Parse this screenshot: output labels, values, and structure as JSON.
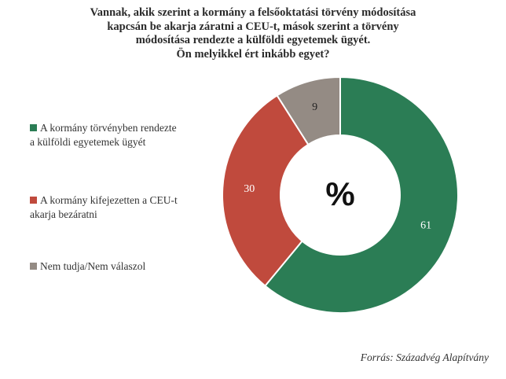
{
  "title_lines": [
    "Vannak, akik szerint a kormány a felsőoktatási törvény módosítása",
    "kapcsán be akarja záratni a CEU-t, mások szerint a törvény",
    "módosítása rendezte a külföldi egyetemek ügyét.",
    "Ön melyikkel ért inkább egyet?"
  ],
  "center_label": "%",
  "source": "Forrás: Századvég Alapítvány",
  "chart_data": {
    "type": "pie",
    "title": "Vannak, akik szerint a kormány a felsőoktatási törvény módosítása kapcsán be akarja záratni a CEU-t, mások szerint a törvény módosítása rendezte a külföldi egyetemek ügyét. Ön melyikkel ért inkább egyet?",
    "unit": "%",
    "donut": true,
    "legend_position": "left",
    "slices": [
      {
        "label_lines": [
          "A kormány törvényben rendezte",
          "a külföldi egyetemek ügyét"
        ],
        "value": 61,
        "color": "#2b7d55"
      },
      {
        "label_lines": [
          "A kormány kifejezetten a CEU-t",
          "akarja bezáratni"
        ],
        "value": 30,
        "color": "#c04a3d"
      },
      {
        "label_lines": [
          "Nem tudja/Nem válaszol"
        ],
        "value": 9,
        "color": "#948b84"
      }
    ]
  }
}
